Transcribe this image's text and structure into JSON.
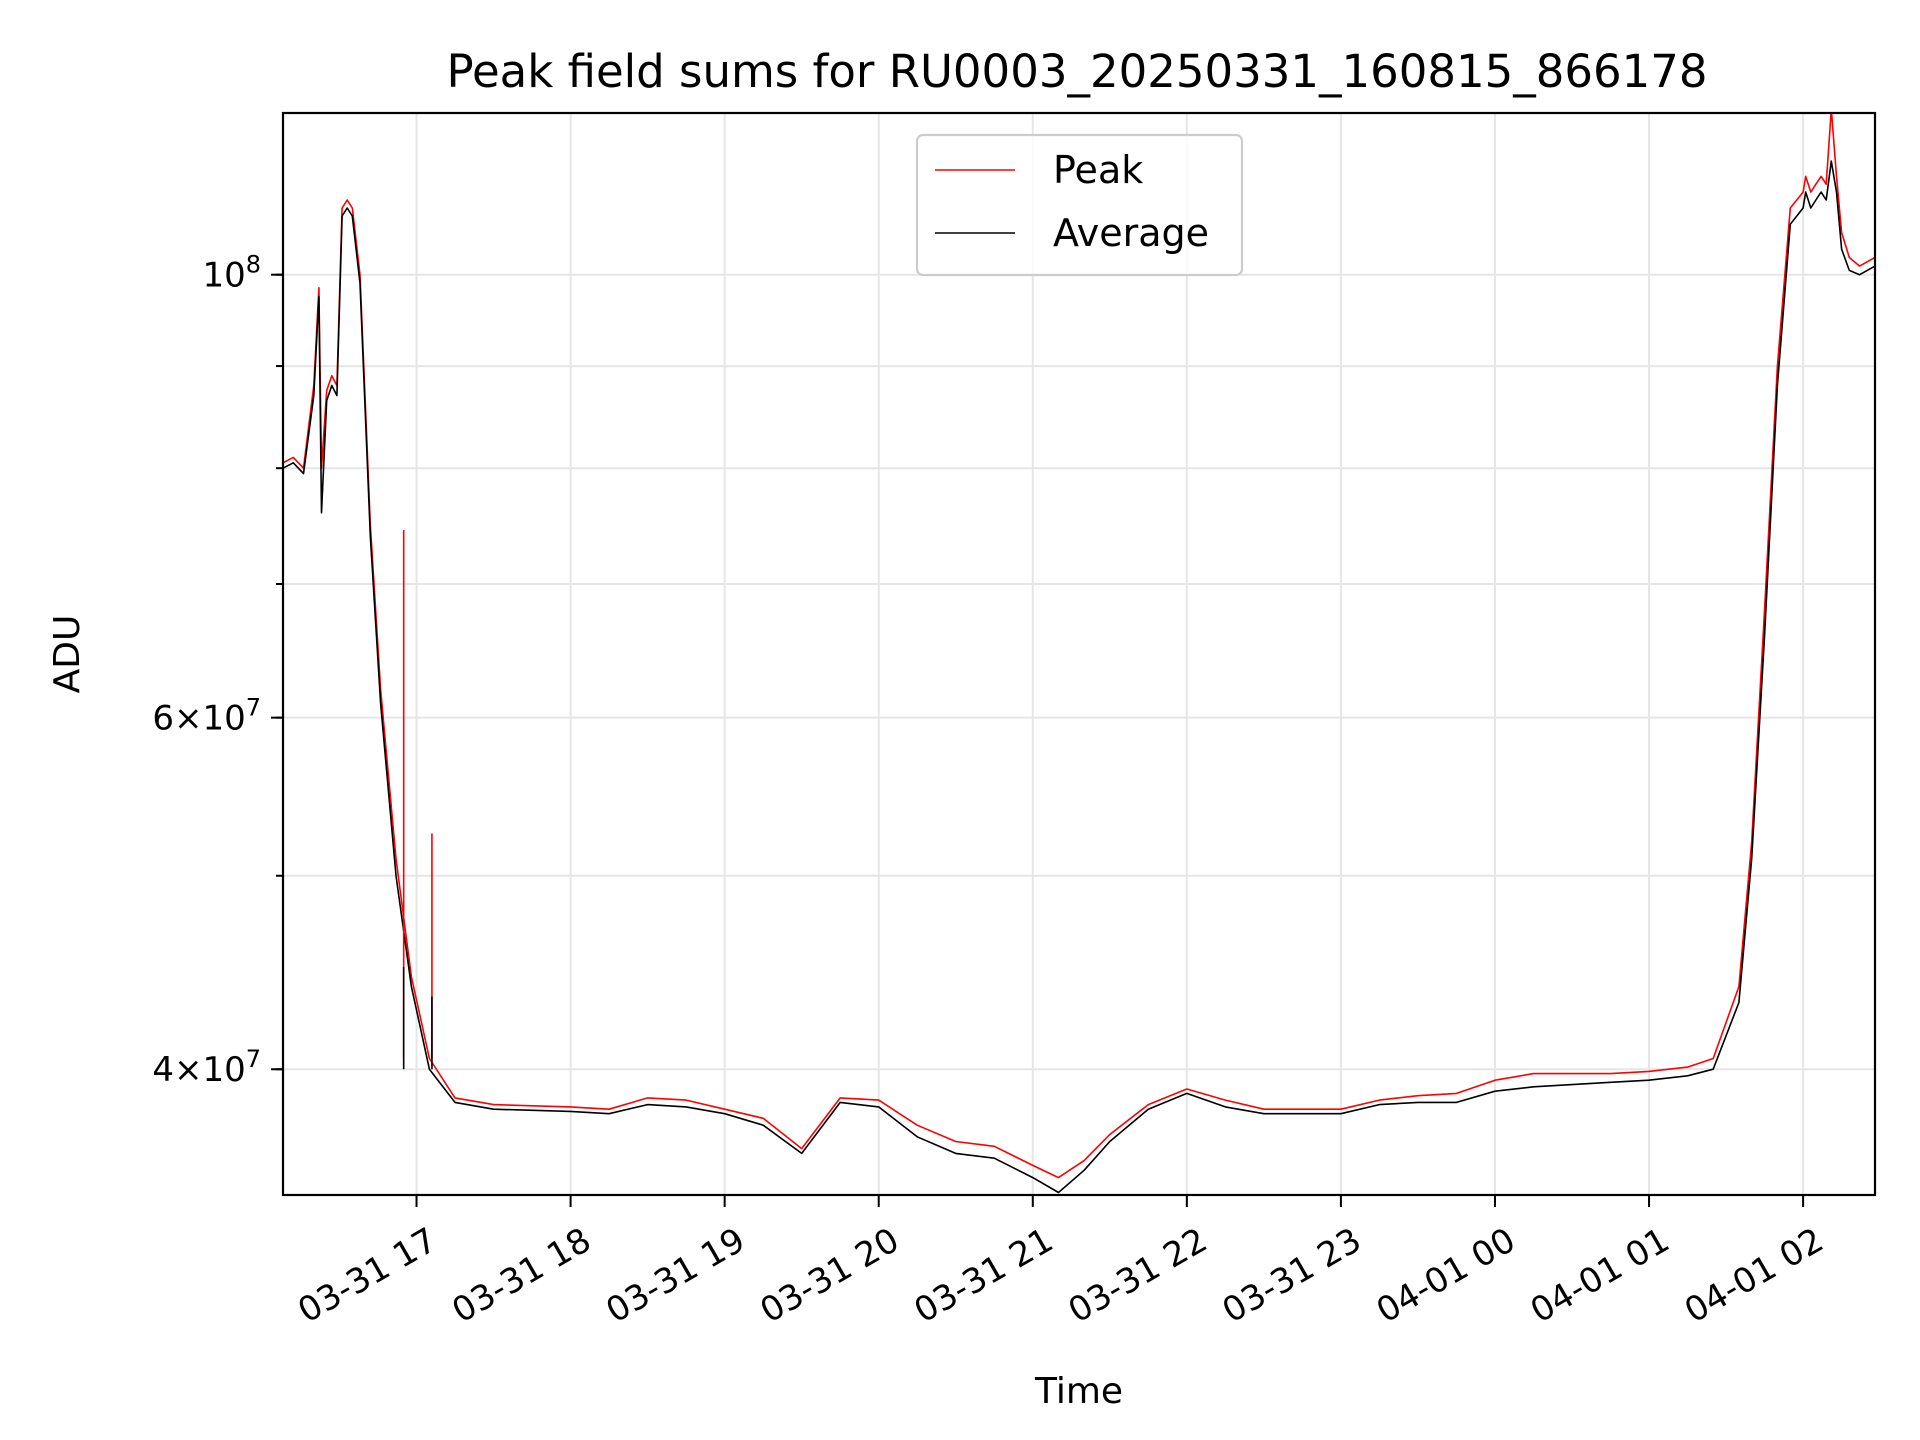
{
  "chart_data": {
    "type": "line",
    "title": "Peak field sums for RU0003_20250331_160815_866178",
    "xlabel": "Time",
    "ylabel": "ADU",
    "y_scale": "log",
    "x_range": [
      "2025-03-31 16:08",
      "2025-04-01 02:28"
    ],
    "ylim": [
      34600000,
      120500000
    ],
    "grid": true,
    "legend_position": "top-center",
    "x_ticks": [
      "03-31 17",
      "03-31 18",
      "03-31 19",
      "03-31 20",
      "03-31 21",
      "03-31 22",
      "03-31 23",
      "04-01 00",
      "04-01 01",
      "04-01 02"
    ],
    "x_tick_times": [
      "2025-03-31 17:00",
      "2025-03-31 18:00",
      "2025-03-31 19:00",
      "2025-03-31 20:00",
      "2025-03-31 21:00",
      "2025-03-31 22:00",
      "2025-03-31 23:00",
      "2025-04-01 00:00",
      "2025-04-01 01:00",
      "2025-04-01 02:00"
    ],
    "y_major_ticks": [
      {
        "value": 100000000,
        "mant": "",
        "exp": "8"
      },
      {
        "value": 60000000,
        "mant": "6",
        "exp": "7"
      },
      {
        "value": 40000000,
        "mant": "4",
        "exp": "7"
      }
    ],
    "y_gridlines": [
      40000000,
      50000000,
      60000000,
      70000000,
      80000000,
      90000000,
      100000000
    ],
    "series": [
      {
        "name": "Peak",
        "color": "#ff0000",
        "x": [
          "2025-03-31 16:08",
          "2025-03-31 16:12",
          "2025-03-31 16:16",
          "2025-03-31 16:20",
          "2025-03-31 16:22",
          "2025-03-31 16:23",
          "2025-03-31 16:25",
          "2025-03-31 16:27",
          "2025-03-31 16:29",
          "2025-03-31 16:31",
          "2025-03-31 16:33",
          "2025-03-31 16:35",
          "2025-03-31 16:38",
          "2025-03-31 16:42",
          "2025-03-31 16:46",
          "2025-03-31 16:52",
          "2025-03-31 16:58",
          "2025-03-31 17:05",
          "2025-03-31 17:15",
          "2025-03-31 17:30",
          "2025-03-31 18:00",
          "2025-03-31 18:15",
          "2025-03-31 18:30",
          "2025-03-31 18:45",
          "2025-03-31 19:00",
          "2025-03-31 19:15",
          "2025-03-31 19:30",
          "2025-03-31 19:45",
          "2025-03-31 20:00",
          "2025-03-31 20:15",
          "2025-03-31 20:30",
          "2025-03-31 20:45",
          "2025-03-31 21:00",
          "2025-03-31 21:10",
          "2025-03-31 21:20",
          "2025-03-31 21:30",
          "2025-03-31 21:45",
          "2025-03-31 22:00",
          "2025-03-31 22:15",
          "2025-03-31 22:30",
          "2025-03-31 22:45",
          "2025-03-31 23:00",
          "2025-03-31 23:15",
          "2025-03-31 23:30",
          "2025-03-31 23:45",
          "2025-04-01 00:00",
          "2025-04-01 00:15",
          "2025-04-01 00:30",
          "2025-04-01 00:45",
          "2025-04-01 01:00",
          "2025-04-01 01:15",
          "2025-04-01 01:25",
          "2025-04-01 01:35",
          "2025-04-01 01:40",
          "2025-04-01 01:45",
          "2025-04-01 01:50",
          "2025-04-01 01:55",
          "2025-04-01 02:00",
          "2025-04-01 02:01",
          "2025-04-01 02:03",
          "2025-04-01 02:05",
          "2025-04-01 02:07",
          "2025-04-01 02:09",
          "2025-04-01 02:11",
          "2025-04-01 02:13",
          "2025-04-01 02:15",
          "2025-04-01 02:18",
          "2025-04-01 02:22",
          "2025-04-01 02:28"
        ],
        "y": [
          80500000,
          81000000,
          80000000,
          88000000,
          98500000,
          80000000,
          87500000,
          89000000,
          88000000,
          108000000,
          109000000,
          108000000,
          100000000,
          75000000,
          62000000,
          51000000,
          44500000,
          40500000,
          38700000,
          38400000,
          38300000,
          38200000,
          38700000,
          38600000,
          38200000,
          37800000,
          36500000,
          38700000,
          38600000,
          37500000,
          36800000,
          36600000,
          35800000,
          35300000,
          36000000,
          37100000,
          38400000,
          39100000,
          38600000,
          38200000,
          38200000,
          38200000,
          38600000,
          38800000,
          38900000,
          39500000,
          39800000,
          39800000,
          39800000,
          39900000,
          40100000,
          40500000,
          44000000,
          52000000,
          68000000,
          90000000,
          108000000,
          110000000,
          112000000,
          110000000,
          111000000,
          112000000,
          111000000,
          121000000,
          112000000,
          105000000,
          102000000,
          101000000,
          102000000
        ]
      },
      {
        "name": "Average",
        "color": "#000000",
        "x": [
          "2025-03-31 16:08",
          "2025-03-31 16:12",
          "2025-03-31 16:16",
          "2025-03-31 16:20",
          "2025-03-31 16:22",
          "2025-03-31 16:23",
          "2025-03-31 16:25",
          "2025-03-31 16:27",
          "2025-03-31 16:29",
          "2025-03-31 16:31",
          "2025-03-31 16:33",
          "2025-03-31 16:35",
          "2025-03-31 16:38",
          "2025-03-31 16:42",
          "2025-03-31 16:46",
          "2025-03-31 16:52",
          "2025-03-31 16:58",
          "2025-03-31 17:05",
          "2025-03-31 17:15",
          "2025-03-31 17:30",
          "2025-03-31 18:00",
          "2025-03-31 18:15",
          "2025-03-31 18:30",
          "2025-03-31 18:45",
          "2025-03-31 19:00",
          "2025-03-31 19:15",
          "2025-03-31 19:30",
          "2025-03-31 19:45",
          "2025-03-31 20:00",
          "2025-03-31 20:15",
          "2025-03-31 20:30",
          "2025-03-31 20:45",
          "2025-03-31 21:00",
          "2025-03-31 21:10",
          "2025-03-31 21:20",
          "2025-03-31 21:30",
          "2025-03-31 21:45",
          "2025-03-31 22:00",
          "2025-03-31 22:15",
          "2025-03-31 22:30",
          "2025-03-31 22:45",
          "2025-03-31 23:00",
          "2025-03-31 23:15",
          "2025-03-31 23:30",
          "2025-03-31 23:45",
          "2025-04-01 00:00",
          "2025-04-01 00:15",
          "2025-04-01 00:30",
          "2025-04-01 00:45",
          "2025-04-01 01:00",
          "2025-04-01 01:15",
          "2025-04-01 01:25",
          "2025-04-01 01:35",
          "2025-04-01 01:40",
          "2025-04-01 01:45",
          "2025-04-01 01:50",
          "2025-04-01 01:55",
          "2025-04-01 02:00",
          "2025-04-01 02:01",
          "2025-04-01 02:03",
          "2025-04-01 02:05",
          "2025-04-01 02:07",
          "2025-04-01 02:09",
          "2025-04-01 02:11",
          "2025-04-01 02:13",
          "2025-04-01 02:15",
          "2025-04-01 02:18",
          "2025-04-01 02:22",
          "2025-04-01 02:28"
        ],
        "y": [
          80000000,
          80500000,
          79500000,
          87000000,
          97500000,
          76000000,
          86500000,
          88000000,
          87000000,
          107000000,
          108000000,
          107000000,
          99000000,
          74000000,
          61000000,
          50000000,
          44000000,
          40000000,
          38500000,
          38200000,
          38100000,
          38000000,
          38400000,
          38300000,
          38000000,
          37500000,
          36300000,
          38500000,
          38300000,
          37000000,
          36300000,
          36100000,
          35300000,
          34700000,
          35600000,
          36800000,
          38200000,
          38900000,
          38300000,
          38000000,
          38000000,
          38000000,
          38400000,
          38500000,
          38500000,
          39000000,
          39200000,
          39300000,
          39400000,
          39500000,
          39700000,
          40000000,
          43200000,
          51000000,
          66000000,
          88000000,
          106000000,
          108000000,
          110000000,
          108000000,
          109000000,
          110000000,
          109000000,
          114000000,
          110000000,
          103000000,
          100500000,
          100000000,
          101000000
        ]
      }
    ],
    "annotations": [
      {
        "x": "2025-03-31 16:55",
        "peak_y": 74500000,
        "average_y": 45000000
      },
      {
        "x": "2025-03-31 17:06",
        "peak_y": 52500000,
        "average_y": 43500000
      }
    ]
  }
}
